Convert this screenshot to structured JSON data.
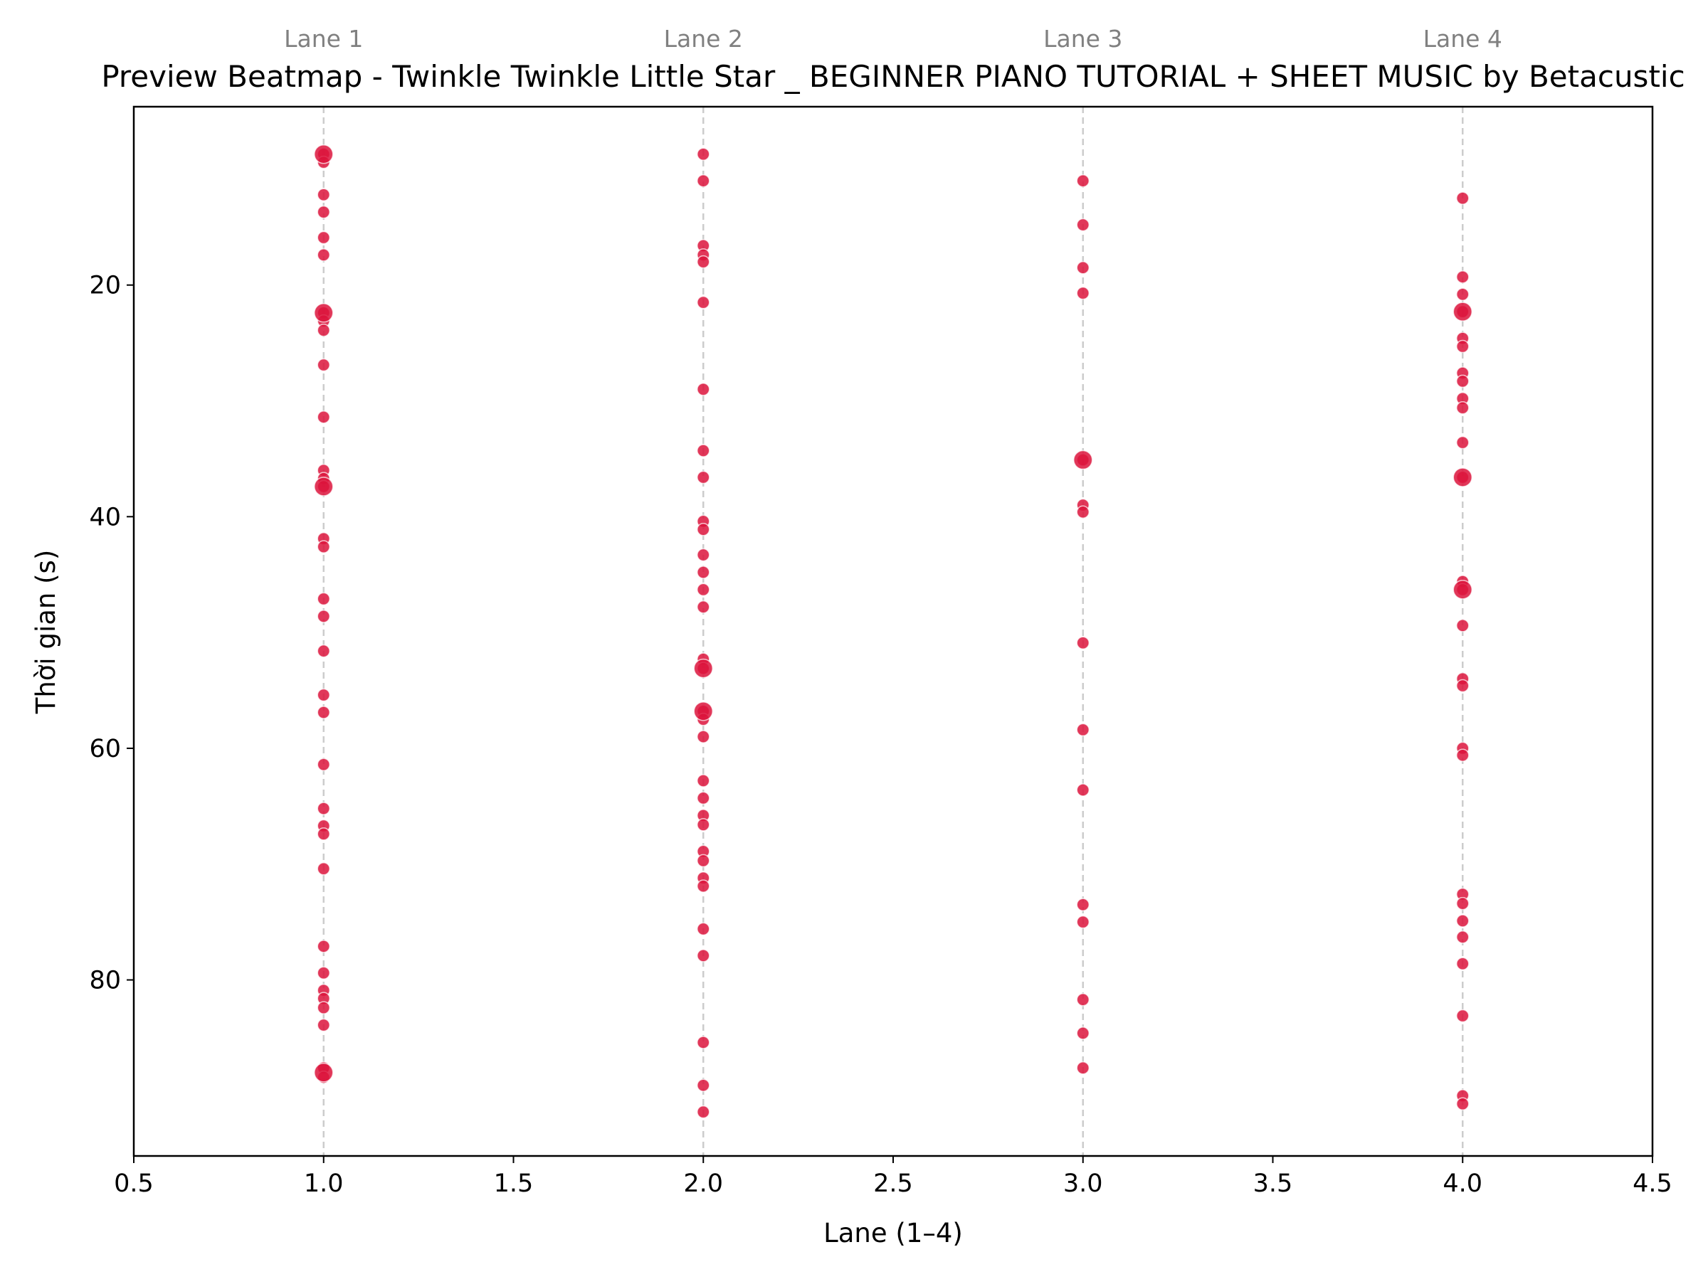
{
  "chart_data": {
    "type": "scatter",
    "title": "Preview Beatmap - Twinkle Twinkle Little Star _ BEGINNER PIANO TUTORIAL + SHEET MUSIC by Betacustic",
    "xlabel": "Lane (1–4)",
    "ylabel": "Thời gian (s)",
    "xlim": [
      0.5,
      4.5
    ],
    "ylim": [
      95.2,
      4.6
    ],
    "y_inverted": true,
    "grid": "vertical dashed lines at lanes",
    "x_ticks": [
      "0.5",
      "1.0",
      "1.5",
      "2.0",
      "2.5",
      "3.0",
      "3.5",
      "4.0",
      "4.5"
    ],
    "y_ticks": [
      "20",
      "40",
      "60",
      "80"
    ],
    "top_labels": [
      "Lane 1",
      "Lane 2",
      "Lane 3",
      "Lane 4"
    ],
    "marker_color": "#dc143c",
    "grid_color": "#cccccc",
    "lanes": [
      {
        "lane": 1,
        "times": [
          8.7,
          9.4,
          12.2,
          13.7,
          15.9,
          17.4,
          22.4,
          23.1,
          23.9,
          26.9,
          31.4,
          36.0,
          36.7,
          37.4,
          41.9,
          42.6,
          47.1,
          48.6,
          51.6,
          55.4,
          56.9,
          61.4,
          65.2,
          66.7,
          67.4,
          70.4,
          77.1,
          79.4,
          80.9,
          81.6,
          82.4,
          83.9,
          87.6,
          88.4
        ],
        "big": [
          8.7,
          22.4,
          37.4,
          88.0
        ]
      },
      {
        "lane": 2,
        "times": [
          8.7,
          11.0,
          16.6,
          17.4,
          18.0,
          21.5,
          29.0,
          34.3,
          36.6,
          40.4,
          41.1,
          43.3,
          44.8,
          46.3,
          47.8,
          52.3,
          53.1,
          56.8,
          57.5,
          59.0,
          62.8,
          64.3,
          65.8,
          66.6,
          68.9,
          69.7,
          71.2,
          71.9,
          75.6,
          77.9,
          85.4,
          89.1,
          91.4
        ],
        "big": [
          53.1,
          56.8
        ]
      },
      {
        "lane": 3,
        "times": [
          11.0,
          14.8,
          18.5,
          20.7,
          35.1,
          39.0,
          39.6,
          50.9,
          58.4,
          63.6,
          73.5,
          75.0,
          81.7,
          84.6,
          87.6
        ],
        "big": [
          35.1
        ]
      },
      {
        "lane": 4,
        "times": [
          12.5,
          19.3,
          20.8,
          22.3,
          24.6,
          25.3,
          27.6,
          28.3,
          29.8,
          30.6,
          33.6,
          36.6,
          45.6,
          46.3,
          49.4,
          54.0,
          54.6,
          60.0,
          60.6,
          72.6,
          73.4,
          74.9,
          76.3,
          78.6,
          83.1,
          90.0,
          90.7
        ],
        "big": [
          22.3,
          36.6,
          46.3
        ]
      }
    ]
  }
}
